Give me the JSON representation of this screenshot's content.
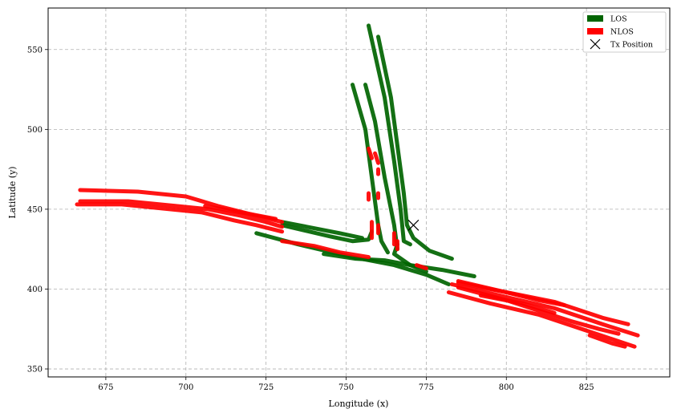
{
  "chart_data": {
    "type": "scatter",
    "xlabel": "Longitude (x)",
    "ylabel": "Latitude (y)",
    "xlim": [
      657,
      851
    ],
    "ylim": [
      345,
      576
    ],
    "xticks": [
      675,
      700,
      725,
      750,
      775,
      800,
      825
    ],
    "yticks": [
      350,
      400,
      450,
      500,
      550
    ],
    "grid": true,
    "legend_position": "top-right",
    "colors": {
      "LOS": "#006400",
      "NLOS": "#ff0000",
      "tx": "#000000"
    },
    "legend": [
      {
        "name": "LOS",
        "marker": "patch",
        "color": "#006400"
      },
      {
        "name": "NLOS",
        "marker": "patch",
        "color": "#ff0000"
      },
      {
        "name": "Tx Position",
        "marker": "x",
        "color": "#000000"
      }
    ],
    "tx_position": {
      "x": 771,
      "y": 440
    },
    "series": [
      {
        "name": "LOS",
        "paths": [
          [
            [
              722,
              435
            ],
            [
              735,
              428
            ],
            [
              752,
              420
            ],
            [
              765,
              415
            ],
            [
              775,
              409
            ],
            [
              782,
              403
            ]
          ],
          [
            [
              730,
              440
            ],
            [
              745,
              433
            ],
            [
              752,
              430
            ],
            [
              757,
              431
            ],
            [
              758,
              436
            ]
          ],
          [
            [
              743,
              422
            ],
            [
              753,
              419
            ],
            [
              762,
              418
            ],
            [
              770,
              415
            ],
            [
              780,
              412
            ],
            [
              790,
              408
            ]
          ],
          [
            [
              730,
              442
            ],
            [
              748,
              435
            ],
            [
              755,
              432
            ]
          ],
          [
            [
              757,
              565
            ],
            [
              762,
              520
            ],
            [
              765,
              480
            ],
            [
              767,
              450
            ],
            [
              768,
              430
            ],
            [
              770,
              428
            ]
          ],
          [
            [
              760,
              558
            ],
            [
              764,
              520
            ],
            [
              766,
              490
            ],
            [
              768,
              460
            ],
            [
              769,
              440
            ],
            [
              771,
              432
            ],
            [
              776,
              424
            ],
            [
              783,
              419
            ]
          ],
          [
            [
              752,
              528
            ],
            [
              756,
              500
            ],
            [
              758,
              470
            ],
            [
              760,
              440
            ],
            [
              761,
              430
            ],
            [
              763,
              423
            ]
          ],
          [
            [
              756,
              528
            ],
            [
              759,
              505
            ],
            [
              762,
              470
            ],
            [
              765,
              440
            ],
            [
              766,
              425
            ]
          ],
          [
            [
              766,
              428
            ],
            [
              765,
              422
            ],
            [
              770,
              415
            ],
            [
              775,
              411
            ]
          ]
        ]
      },
      {
        "name": "NLOS",
        "paths": [
          [
            [
              666,
              453
            ],
            [
              680,
              453
            ],
            [
              695,
              450
            ],
            [
              705,
              448
            ],
            [
              715,
              443
            ],
            [
              722,
              440
            ],
            [
              730,
              436
            ]
          ],
          [
            [
              667,
              455
            ],
            [
              682,
              455
            ],
            [
              697,
              452
            ],
            [
              707,
              450
            ],
            [
              717,
              446
            ],
            [
              725,
              442
            ],
            [
              730,
              439
            ]
          ],
          [
            [
              667,
              462
            ],
            [
              685,
              461
            ],
            [
              700,
              458
            ],
            [
              710,
              452
            ],
            [
              720,
              447
            ],
            [
              730,
              442
            ]
          ],
          [
            [
              706,
              452
            ],
            [
              720,
              447
            ],
            [
              728,
              444
            ]
          ],
          [
            [
              730,
              430
            ],
            [
              740,
              427
            ],
            [
              748,
              423
            ],
            [
              757,
              420
            ]
          ],
          [
            [
              782,
              398
            ],
            [
              795,
              391
            ],
            [
              810,
              384
            ],
            [
              825,
              374
            ],
            [
              840,
              364
            ]
          ],
          [
            [
              783,
              403
            ],
            [
              800,
              395
            ],
            [
              815,
              388
            ],
            [
              830,
              378
            ],
            [
              841,
              371
            ]
          ],
          [
            [
              785,
              404
            ],
            [
              800,
              398
            ],
            [
              815,
              392
            ],
            [
              830,
              382
            ],
            [
              838,
              378
            ]
          ],
          [
            [
              785,
              405
            ],
            [
              800,
              398
            ],
            [
              810,
              393
            ],
            [
              818,
              390
            ]
          ],
          [
            [
              792,
              396
            ],
            [
              805,
              391
            ],
            [
              815,
              385
            ]
          ],
          [
            [
              785,
              401
            ],
            [
              800,
              393
            ],
            [
              820,
              380
            ],
            [
              829,
              375
            ],
            [
              835,
              372
            ]
          ],
          [
            [
              826,
              371
            ],
            [
              833,
              366
            ],
            [
              837,
              364
            ]
          ],
          [
            [
              757,
              488
            ],
            [
              758,
              482
            ]
          ],
          [
            [
              759,
              485
            ],
            [
              760,
              479
            ]
          ],
          [
            [
              760,
              475
            ],
            [
              760,
              472
            ]
          ],
          [
            [
              757,
              460
            ],
            [
              757,
              456
            ]
          ],
          [
            [
              760,
              460
            ],
            [
              760,
              457
            ]
          ],
          [
            [
              758,
              442
            ],
            [
              758,
              432
            ]
          ],
          [
            [
              760,
              440
            ],
            [
              760,
              435
            ]
          ],
          [
            [
              765,
              435
            ],
            [
              765,
              428
            ]
          ],
          [
            [
              766,
              430
            ],
            [
              766,
              425
            ]
          ],
          [
            [
              772,
              415
            ],
            [
              775,
              413
            ]
          ]
        ]
      }
    ]
  }
}
